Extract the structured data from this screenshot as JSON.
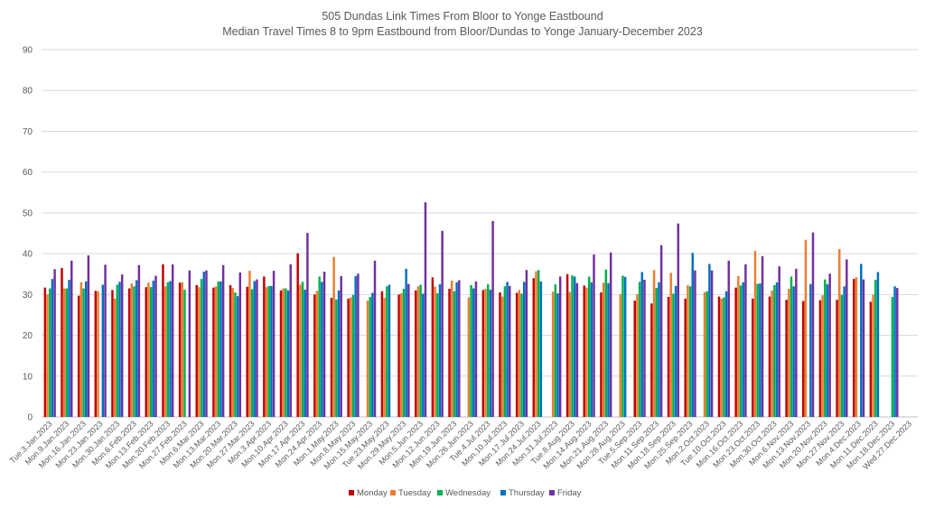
{
  "chart_data": {
    "type": "bar",
    "title": "505 Dundas Link Times From Bloor to Yonge Eastbound",
    "subtitle": "Median Travel Times 8 to 9pm Eastbound from Bloor/Dundas to Yonge January-December 2023",
    "xlabel": "",
    "ylabel": "",
    "ylim": [
      0,
      90
    ],
    "yticks": [
      0,
      10,
      20,
      30,
      40,
      50,
      60,
      70,
      80,
      90
    ],
    "grid": true,
    "legend_position": "bottom",
    "categories": [
      "Tue.3.Jan.2023",
      "Mon.9.Jan.2023",
      "Mon.16.Jan.2023",
      "Mon.23.Jan.2023",
      "Mon.30.Jan.2023",
      "Mon.6.Feb.2023",
      "Mon.13.Feb.2023",
      "Mon.20.Feb.2023",
      "Mon.27.Feb.2023",
      "Mon.6.Mar.2023",
      "Mon.13.Mar.2023",
      "Mon.20.Mar.2023",
      "Mon.27.Mar.2023",
      "Mon.3.Apr.2023",
      "Mon.10.Apr.2023",
      "Mon.17.Apr.2023",
      "Mon.24.Apr.2023",
      "Mon.1.May.2023",
      "Mon.8.May.2023",
      "Mon.15.May.2023",
      "Tue.23.May.2023",
      "Mon.29.May.2023",
      "Mon.5.Jun.2023",
      "Mon.12.Jun.2023",
      "Mon.19.Jun.2023",
      "Mon.26.Jun.2023",
      "Tue.4.Jul.2023",
      "Mon.10.Jul.2023",
      "Mon.17.Jul.2023",
      "Mon.24.Jul.2023",
      "Mon.31.Jul.2023",
      "Tue.8.Aug.2023",
      "Mon.14.Aug.2023",
      "Mon.21.Aug.2023",
      "Mon.28.Aug.2023",
      "Tue.5.Sep.2023",
      "Mon.11.Sep.2023",
      "Mon.18.Sep.2023",
      "Mon.25.Sep.2023",
      "Mon.2.Oct.2023",
      "Tue.10.Oct.2023",
      "Mon.16.Oct.2023",
      "Mon.23.Oct.2023",
      "Mon.30.Oct.2023",
      "Mon.6.Nov.2023",
      "Mon.13.Nov.2023",
      "Mon.20.Nov.2023",
      "Mon.27.Nov.2023",
      "Mon.4.Dec.2023",
      "Mon.11.Dec.2023",
      "Mon.18.Dec.2023",
      "Wed.27.Dec.2023"
    ],
    "series": [
      {
        "name": "Monday",
        "color": "#c00000",
        "values": [
          31.7,
          36.5,
          29.7,
          30.9,
          31.1,
          31.5,
          31.8,
          37.4,
          32.9,
          32.3,
          31.7,
          32.3,
          31.9,
          34.4,
          31.0,
          40.1,
          30.0,
          29.2,
          29.0,
          null,
          30.8,
          30.0,
          31.0,
          34.2,
          31.4,
          null,
          31.1,
          30.5,
          30.4,
          34.0,
          null,
          35.0,
          32.2,
          30.5,
          null,
          28.5,
          27.8,
          29.4,
          29.0,
          null,
          29.5,
          31.7,
          29.0,
          29.5,
          28.7,
          28.4,
          28.6,
          28.7,
          33.8,
          28.2,
          null,
          null
        ]
      },
      {
        "name": "Tuesday",
        "color": "#ed7d31",
        "values": [
          30.0,
          31.5,
          33.0,
          30.8,
          29.0,
          32.7,
          32.9,
          32.0,
          33.0,
          31.8,
          32.0,
          31.6,
          35.8,
          31.8,
          31.5,
          32.4,
          30.9,
          39.2,
          29.3,
          28.5,
          29.2,
          30.3,
          32.0,
          31.9,
          33.4,
          29.3,
          31.4,
          29.5,
          31.1,
          35.7,
          30.7,
          30.6,
          31.7,
          32.9,
          30.1,
          30.1,
          36.0,
          35.3,
          32.3,
          30.6,
          29.0,
          34.5,
          40.7,
          31.0,
          31.4,
          43.4,
          29.8,
          41.1,
          34.2,
          30.0,
          null,
          null
        ]
      },
      {
        "name": "Wednesday",
        "color": "#00b050",
        "values": [
          31.5,
          31.5,
          31.5,
          null,
          32.4,
          32.0,
          31.8,
          33.0,
          31.2,
          33.8,
          33.2,
          30.5,
          31.3,
          32.1,
          31.5,
          33.1,
          34.4,
          28.8,
          29.9,
          29.4,
          32.0,
          31.4,
          32.4,
          30.3,
          30.8,
          32.3,
          32.5,
          32.0,
          30.2,
          36.0,
          32.5,
          34.7,
          34.4,
          36.1,
          34.6,
          33.1,
          31.6,
          30.2,
          32.0,
          30.8,
          29.3,
          32.2,
          32.6,
          32.3,
          34.4,
          null,
          33.7,
          29.9,
          null,
          33.6,
          29.4,
          null
        ]
      },
      {
        "name": "Thursday",
        "color": "#0070c0",
        "values": [
          33.8,
          33.6,
          33.2,
          32.4,
          33.1,
          33.5,
          33.4,
          33.3,
          null,
          35.6,
          33.2,
          29.6,
          33.3,
          32.1,
          31.0,
          31.2,
          33.1,
          31.0,
          34.5,
          30.4,
          32.4,
          36.3,
          30.2,
          32.5,
          33.0,
          31.5,
          31.2,
          33.1,
          33.1,
          33.2,
          30.3,
          34.4,
          33.0,
          32.8,
          34.3,
          35.5,
          33.0,
          32.1,
          40.2,
          37.5,
          30.8,
          33.0,
          32.7,
          33.0,
          32.0,
          32.6,
          32.5,
          32.0,
          37.5,
          35.5,
          32.0,
          null
        ]
      },
      {
        "name": "Friday",
        "color": "#7030a0",
        "values": [
          36.2,
          38.3,
          39.6,
          37.3,
          34.9,
          37.2,
          34.6,
          37.4,
          35.9,
          35.9,
          37.2,
          35.4,
          33.7,
          35.8,
          37.4,
          45.1,
          35.6,
          34.5,
          35.1,
          38.3,
          null,
          32.6,
          52.6,
          45.6,
          33.5,
          33.2,
          48.0,
          32.1,
          36.0,
          null,
          34.4,
          32.8,
          39.8,
          40.3,
          null,
          33.6,
          42.1,
          47.4,
          35.9,
          35.9,
          38.3,
          37.4,
          39.4,
          36.9,
          36.3,
          45.2,
          35.1,
          38.6,
          33.7,
          null,
          31.6,
          null
        ]
      }
    ]
  }
}
